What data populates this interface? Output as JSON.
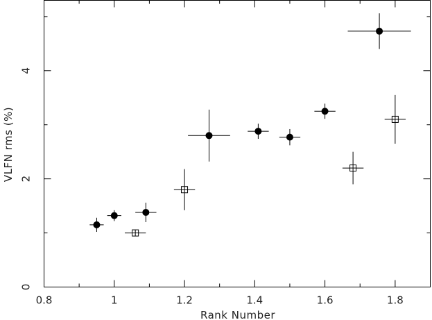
{
  "chart_data": {
    "type": "scatter",
    "title": "",
    "xlabel": "Rank Number",
    "ylabel": "VLFN rms (%)",
    "xlim": [
      0.8,
      1.9
    ],
    "ylim": [
      0,
      5.3
    ],
    "x_major_ticks": [
      0.8,
      1.0,
      1.2,
      1.4,
      1.6,
      1.8
    ],
    "x_tick_labels": [
      "0.8",
      "1",
      "1.2",
      "1.4",
      "1.6",
      "1.8"
    ],
    "x_minor_ticks": [
      0.9,
      1.1,
      1.3,
      1.5,
      1.7
    ],
    "y_major_ticks": [
      0,
      2,
      4
    ],
    "y_tick_labels": [
      "0",
      "2",
      "4"
    ],
    "y_minor_ticks": [
      1,
      3,
      5
    ],
    "grid": false,
    "legend": "none",
    "series": [
      {
        "marker": "filled-circle",
        "color": "#000000",
        "points": [
          {
            "x": 0.95,
            "y": 1.15,
            "xerr": 0.02,
            "yerr": 0.13
          },
          {
            "x": 1.0,
            "y": 1.32,
            "xerr": 0.02,
            "yerr": 0.1
          },
          {
            "x": 1.09,
            "y": 1.38,
            "xerr": 0.03,
            "yerr": 0.18
          },
          {
            "x": 1.27,
            "y": 2.8,
            "xerr": 0.06,
            "yerr": 0.48
          },
          {
            "x": 1.41,
            "y": 2.88,
            "xerr": 0.03,
            "yerr": 0.14
          },
          {
            "x": 1.5,
            "y": 2.77,
            "xerr": 0.03,
            "yerr": 0.15
          },
          {
            "x": 1.6,
            "y": 3.25,
            "xerr": 0.03,
            "yerr": 0.14
          },
          {
            "x": 1.755,
            "y": 4.73,
            "xerr": 0.09,
            "yerr": 0.33
          }
        ]
      },
      {
        "marker": "open-square",
        "color": "#000000",
        "points": [
          {
            "x": 1.06,
            "y": 1.0,
            "xerr": 0.03,
            "yerr": 0.05
          },
          {
            "x": 1.2,
            "y": 1.8,
            "xerr": 0.03,
            "yerr": 0.38
          },
          {
            "x": 1.68,
            "y": 2.2,
            "xerr": 0.03,
            "yerr": 0.3
          },
          {
            "x": 1.8,
            "y": 3.1,
            "xerr": 0.03,
            "yerr": 0.45
          }
        ]
      }
    ]
  }
}
